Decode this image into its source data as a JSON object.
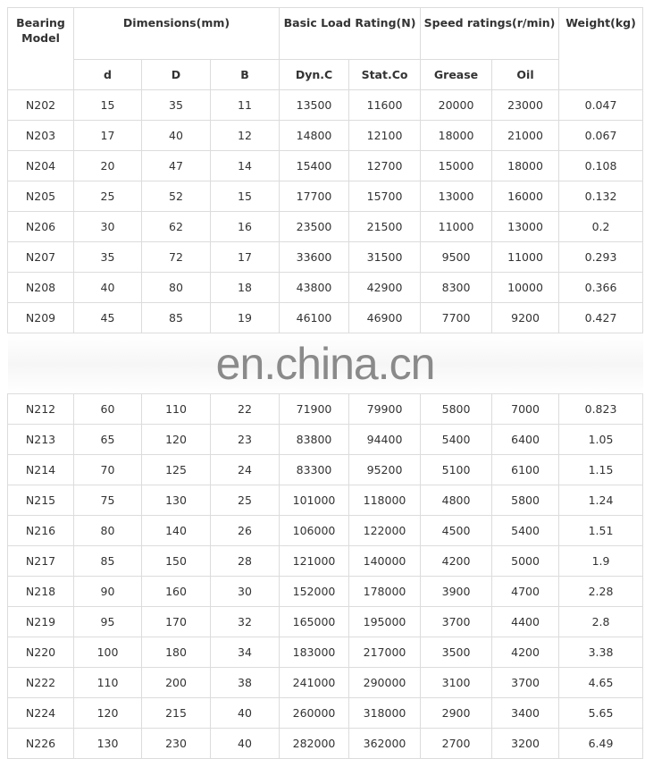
{
  "header": {
    "model": "Bearing Model",
    "dimensions": "Dimensions(mm)",
    "load": "Basic Load Rating(N)",
    "speed": "Speed ratings(r/min)",
    "weight": "Weight(kg)",
    "d": "d",
    "D": "D",
    "B": "B",
    "dyn": "Dyn.C",
    "stat": "Stat.Co",
    "grease": "Grease",
    "oil": "Oil"
  },
  "rows_top": [
    [
      "N202",
      "15",
      "35",
      "11",
      "13500",
      "11600",
      "20000",
      "23000",
      "0.047"
    ],
    [
      "N203",
      "17",
      "40",
      "12",
      "14800",
      "12100",
      "18000",
      "21000",
      "0.067"
    ],
    [
      "N204",
      "20",
      "47",
      "14",
      "15400",
      "12700",
      "15000",
      "18000",
      "0.108"
    ],
    [
      "N205",
      "25",
      "52",
      "15",
      "17700",
      "15700",
      "13000",
      "16000",
      "0.132"
    ],
    [
      "N206",
      "30",
      "62",
      "16",
      "23500",
      "21500",
      "11000",
      "13000",
      "0.2"
    ],
    [
      "N207",
      "35",
      "72",
      "17",
      "33600",
      "31500",
      "9500",
      "11000",
      "0.293"
    ],
    [
      "N208",
      "40",
      "80",
      "18",
      "43800",
      "42900",
      "8300",
      "10000",
      "0.366"
    ],
    [
      "N209",
      "45",
      "85",
      "19",
      "46100",
      "46900",
      "7700",
      "9200",
      "0.427"
    ]
  ],
  "watermark": "en.china.cn",
  "rows_bottom": [
    [
      "N212",
      "60",
      "110",
      "22",
      "71900",
      "79900",
      "5800",
      "7000",
      "0.823"
    ],
    [
      "N213",
      "65",
      "120",
      "23",
      "83800",
      "94400",
      "5400",
      "6400",
      "1.05"
    ],
    [
      "N214",
      "70",
      "125",
      "24",
      "83300",
      "95200",
      "5100",
      "6100",
      "1.15"
    ],
    [
      "N215",
      "75",
      "130",
      "25",
      "101000",
      "118000",
      "4800",
      "5800",
      "1.24"
    ],
    [
      "N216",
      "80",
      "140",
      "26",
      "106000",
      "122000",
      "4500",
      "5400",
      "1.51"
    ],
    [
      "N217",
      "85",
      "150",
      "28",
      "121000",
      "140000",
      "4200",
      "5000",
      "1.9"
    ],
    [
      "N218",
      "90",
      "160",
      "30",
      "152000",
      "178000",
      "3900",
      "4700",
      "2.28"
    ],
    [
      "N219",
      "95",
      "170",
      "32",
      "165000",
      "195000",
      "3700",
      "4400",
      "2.8"
    ],
    [
      "N220",
      "100",
      "180",
      "34",
      "183000",
      "217000",
      "3500",
      "4200",
      "3.38"
    ],
    [
      "N222",
      "110",
      "200",
      "38",
      "241000",
      "290000",
      "3100",
      "3700",
      "4.65"
    ],
    [
      "N224",
      "120",
      "215",
      "40",
      "260000",
      "318000",
      "2900",
      "3400",
      "5.65"
    ],
    [
      "N226",
      "130",
      "230",
      "40",
      "282000",
      "362000",
      "2700",
      "3200",
      "6.49"
    ]
  ]
}
